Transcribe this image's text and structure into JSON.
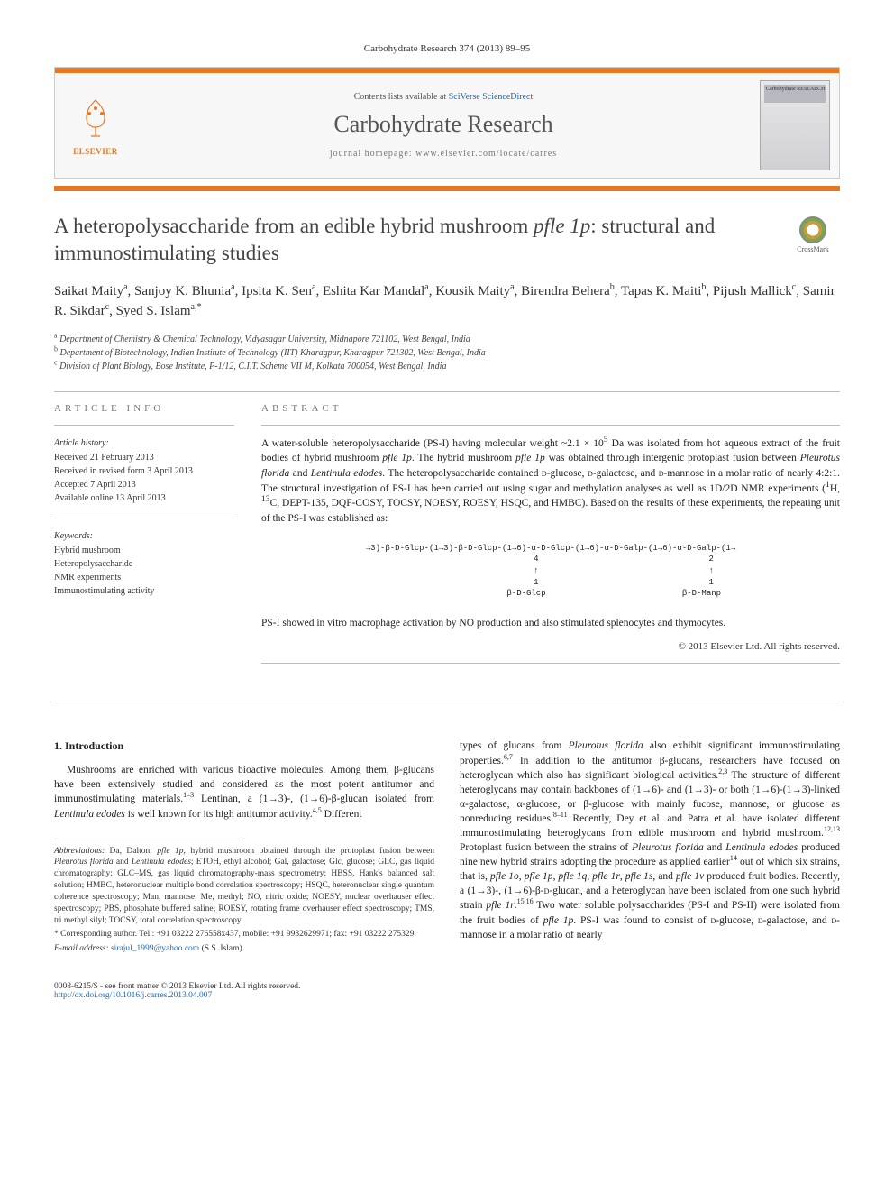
{
  "journal_ref": "Carbohydrate Research 374 (2013) 89–95",
  "header": {
    "contents_prefix": "Contents lists available at ",
    "contents_link": "SciVerse ScienceDirect",
    "journal_title": "Carbohydrate Research",
    "homepage_prefix": "journal homepage: ",
    "homepage_url": "www.elsevier.com/locate/carres",
    "elsevier_label": "ELSEVIER",
    "cover_label": "Carbohydrate RESEARCH"
  },
  "title_html": "A heteropolysaccharide from an edible hybrid mushroom <em>pfle 1p</em>: structural and immunostimulating studies",
  "crossmark_label": "CrossMark",
  "authors_html": "Saikat Maity<sup>a</sup>, Sanjoy K. Bhunia<sup>a</sup>, Ipsita K. Sen<sup>a</sup>, Eshita Kar Mandal<sup>a</sup>, Kousik Maity<sup>a</sup>, Birendra Behera<sup>b</sup>, Tapas K. Maiti<sup>b</sup>, Pijush Mallick<sup>c</sup>, Samir R. Sikdar<sup>c</sup>, Syed S. Islam<sup>a,*</sup>",
  "affiliations": [
    {
      "sup": "a",
      "text": "Department of Chemistry & Chemical Technology, Vidyasagar University, Midnapore 721102, West Bengal, India"
    },
    {
      "sup": "b",
      "text": "Department of Biotechnology, Indian Institute of Technology (IIT) Kharagpur, Kharagpur 721302, West Bengal, India"
    },
    {
      "sup": "c",
      "text": "Division of Plant Biology, Bose Institute, P-1/12, C.I.T. Scheme VII M, Kolkata 700054, West Bengal, India"
    }
  ],
  "info": {
    "label": "ARTICLE INFO",
    "history_head": "Article history:",
    "history": [
      "Received 21 February 2013",
      "Received in revised form 3 April 2013",
      "Accepted 7 April 2013",
      "Available online 13 April 2013"
    ],
    "keywords_head": "Keywords:",
    "keywords": [
      "Hybrid mushroom",
      "Heteropolysaccharide",
      "NMR experiments",
      "Immunostimulating activity"
    ]
  },
  "abstract": {
    "label": "ABSTRACT",
    "text_html": "A water-soluble heteropolysaccharide (PS-I) having molecular weight ~2.1 × 10<sup>5</sup> Da was isolated from hot aqueous extract of the fruit bodies of hybrid mushroom <em>pfle 1p</em>. The hybrid mushroom <em>pfle 1p</em> was obtained through intergenic protoplast fusion between <em>Pleurotus florida</em> and <em>Lentinula edodes</em>. The heteropolysaccharide contained <span class='smallcaps'>d</span>-glucose, <span class='smallcaps'>d</span>-galactose, and <span class='smallcaps'>d</span>-mannose in a molar ratio of nearly 4:2:1. The structural investigation of PS-I has been carried out using sugar and methylation analyses as well as 1D/2D NMR experiments (<sup>1</sup>H, <sup>13</sup>C, DEPT-135, DQF-COSY, TOCSY, NOESY, ROESY, HSQC, and HMBC). Based on the results of these experiments, the repeating unit of the PS-I was established as:",
    "structure": "→3)-β-D-Glcp-(1→3)-β-D-Glcp-(1→6)-α-D-Glcp-(1→6)-α-D-Galp-(1→6)-α-D-Galp-(1→\n                              4                                   2\n                              ↑                                   ↑\n                              1                                   1\n                          β-D-Glcp                            β-D-Manp",
    "tail": "PS-I showed in vitro macrophage activation by NO production and also stimulated splenocytes and thymocytes.",
    "copyright": "© 2013 Elsevier Ltd. All rights reserved."
  },
  "body": {
    "section_heading": "1. Introduction",
    "left_para_html": "Mushrooms are enriched with various bioactive molecules. Among them, β-glucans have been extensively studied and considered as the most potent antitumor and immunostimulating materials.<sup>1–3</sup> Lentinan, a (1→3)-, (1→6)-β-glucan isolated from <em>Lentinula edodes</em> is well known for its high antitumor activity.<sup>4,5</sup> Different",
    "right_para_html": "types of glucans from <em>Pleurotus florida</em> also exhibit significant immunostimulating properties.<sup>6,7</sup> In addition to the antitumor β-glucans, researchers have focused on heteroglycan which also has significant biological activities.<sup>2,3</sup> The structure of different heteroglycans may contain backbones of (1→6)- and (1→3)- or both (1→6)-(1→3)-linked α-galactose, α-glucose, or β-glucose with mainly fucose, mannose, or glucose as nonreducing residues.<sup>8–11</sup> Recently, Dey et al. and Patra et al. have isolated different immunostimulating heteroglycans from edible mushroom and hybrid mushroom.<sup>12,13</sup> Protoplast fusion between the strains of <em>Pleurotus florida</em> and <em>Lentinula edodes</em> produced nine new hybrid strains adopting the procedure as applied earlier<sup>14</sup> out of which six strains, that is, <em>pfle 1o</em>, <em>pfle 1p</em>, <em>pfle 1q</em>, <em>pfle 1r</em>, <em>pfle 1s</em>, and <em>pfle 1v</em> produced fruit bodies. Recently, a (1→3)-, (1→6)-β-<span class='smallcaps'>d</span>-glucan, and a heteroglycan have been isolated from one such hybrid strain <em>pfle 1r</em>.<sup>15,16</sup> Two water soluble polysaccharides (PS-I and PS-II) were isolated from the fruit bodies of <em>pfle 1p</em>. PS-I was found to consist of <span class='smallcaps'>d</span>-glucose, <span class='smallcaps'>d</span>-galactose, and <span class='smallcaps'>d</span>-mannose in a molar ratio of nearly"
  },
  "footnotes": {
    "abbrev_html": "<em>Abbreviations:</em> Da, Dalton; <em>pfle 1p</em>, hybrid mushroom obtained through the protoplast fusion between <em>Pleurotus florida</em> and <em>Lentinula edodes</em>; ETOH, ethyl alcohol; Gal, galactose; Glc, glucose; GLC, gas liquid chromatography; GLC–MS, gas liquid chromatography-mass spectrometry; HBSS, Hank's balanced salt solution; HMBC, heteronuclear multiple bond correlation spectroscopy; HSQC, heteronuclear single quantum coherence spectroscopy; Man, mannose; Me, methyl; NO, nitric oxide; NOESY, nuclear overhauser effect spectroscopy; PBS, phosphate buffered saline; ROESY, rotating frame overhauser effect spectroscopy; TMS, tri methyl silyl; TOCSY, total correlation spectroscopy.",
    "corr_html": "* Corresponding author. Tel.: +91 03222 276558x437, mobile: +91 9932629971; fax: +91 03222 275329.",
    "email_label": "E-mail address:",
    "email": "sirajul_1999@yahoo.com",
    "email_suffix": "(S.S. Islam)."
  },
  "footer": {
    "line1": "0008-6215/$ - see front matter © 2013 Elsevier Ltd. All rights reserved.",
    "doi": "http://dx.doi.org/10.1016/j.carres.2013.04.007"
  },
  "colors": {
    "orange": "#e87722",
    "link": "#1a6bb8",
    "heading": "#444444",
    "text": "#222222",
    "rule": "#bbbbbb"
  }
}
